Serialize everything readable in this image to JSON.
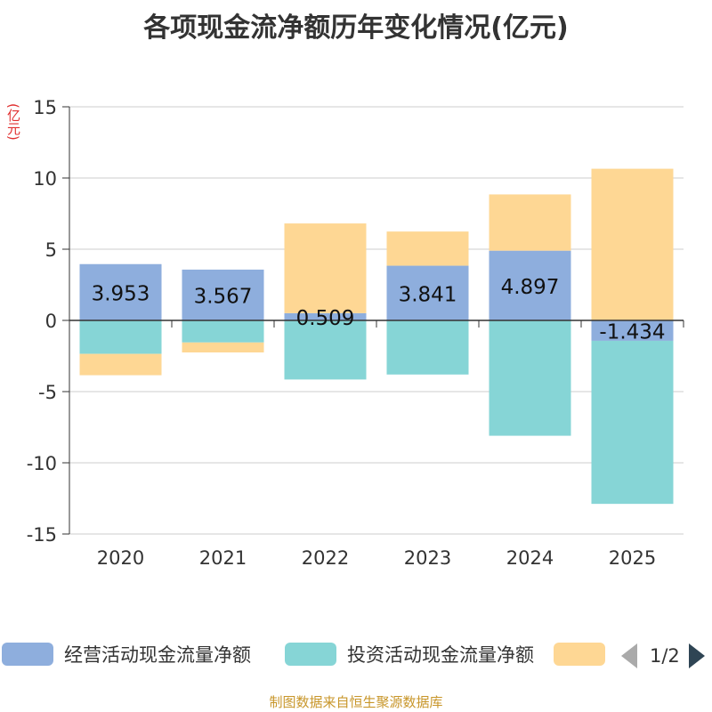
{
  "chart_data": {
    "type": "bar",
    "stacked": true,
    "title": "各项现金流净额历年变化情况(亿元)",
    "ylabel": "(亿元)",
    "xlabel": "",
    "ylim": [
      -15,
      15
    ],
    "yticks": [
      15,
      10,
      5,
      0,
      -5,
      -10,
      -15
    ],
    "categories": [
      "2020",
      "2021",
      "2022",
      "2023",
      "2024",
      "2025"
    ],
    "series": [
      {
        "name": "经营活动现金流量净额",
        "color": "#8eaedd",
        "values": [
          3.953,
          3.567,
          0.509,
          3.841,
          4.897,
          -1.434
        ],
        "labels": [
          "3.953",
          "3.567",
          "0.509",
          "3.841",
          "4.897",
          "-1.434"
        ]
      },
      {
        "name": "投资活动现金流量净额",
        "color": "#86d5d6",
        "values": [
          -2.35,
          -1.55,
          -4.15,
          -3.8,
          -8.1,
          -11.45
        ]
      },
      {
        "name": "",
        "color": "#fed794",
        "values": [
          -1.5,
          -0.7,
          6.3,
          2.4,
          3.95,
          10.65
        ]
      }
    ]
  },
  "legend": {
    "page": "1/2"
  },
  "source": "制图数据来自恒生聚源数据库"
}
